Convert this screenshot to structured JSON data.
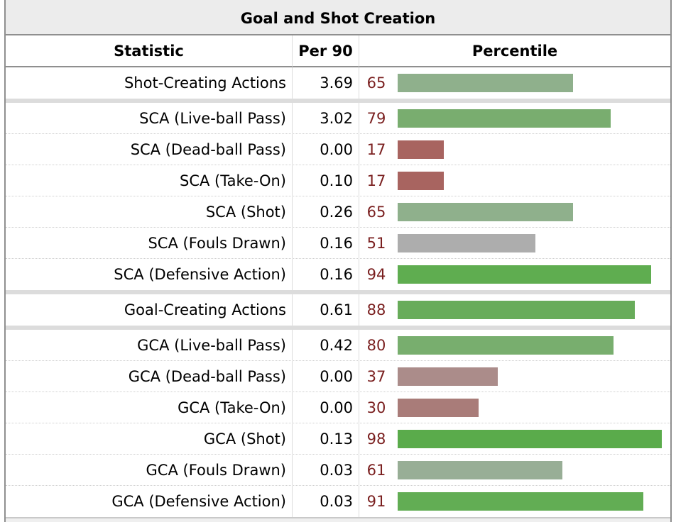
{
  "title": "Goal and Shot Creation",
  "headers": {
    "statistic": "Statistic",
    "per90": "Per 90",
    "percentile": "Percentile"
  },
  "chart_data": {
    "type": "bar",
    "title": "Goal and Shot Creation",
    "xlabel": "",
    "ylabel": "Percentile",
    "ylim": [
      0,
      100
    ],
    "rows": [
      {
        "stat": "Shot-Creating Actions",
        "per90": "3.69",
        "percentile": 65,
        "color": "#8fb08c",
        "group": 1
      },
      {
        "stat": "SCA (Live-ball Pass)",
        "per90": "3.02",
        "percentile": 79,
        "color": "#79ad6f",
        "group": 2
      },
      {
        "stat": "SCA (Dead-ball Pass)",
        "per90": "0.00",
        "percentile": 17,
        "color": "#a86460",
        "group": 2
      },
      {
        "stat": "SCA (Take-On)",
        "per90": "0.10",
        "percentile": 17,
        "color": "#a86460",
        "group": 2
      },
      {
        "stat": "SCA (Shot)",
        "per90": "0.26",
        "percentile": 65,
        "color": "#8fb08c",
        "group": 2
      },
      {
        "stat": "SCA (Fouls Drawn)",
        "per90": "0.16",
        "percentile": 51,
        "color": "#adadad",
        "group": 2
      },
      {
        "stat": "SCA (Defensive Action)",
        "per90": "0.16",
        "percentile": 94,
        "color": "#5fad50",
        "group": 2
      },
      {
        "stat": "Goal-Creating Actions",
        "per90": "0.61",
        "percentile": 88,
        "color": "#68ac5a",
        "group": 3
      },
      {
        "stat": "GCA (Live-ball Pass)",
        "per90": "0.42",
        "percentile": 80,
        "color": "#78ae6e",
        "group": 4
      },
      {
        "stat": "GCA (Dead-ball Pass)",
        "per90": "0.00",
        "percentile": 37,
        "color": "#ab8c8a",
        "group": 4
      },
      {
        "stat": "GCA (Take-On)",
        "per90": "0.00",
        "percentile": 30,
        "color": "#a97c79",
        "group": 4
      },
      {
        "stat": "GCA (Shot)",
        "per90": "0.13",
        "percentile": 98,
        "color": "#5aab4b",
        "group": 4
      },
      {
        "stat": "GCA (Fouls Drawn)",
        "per90": "0.03",
        "percentile": 61,
        "color": "#98ae96",
        "group": 4
      },
      {
        "stat": "GCA (Defensive Action)",
        "per90": "0.03",
        "percentile": 91,
        "color": "#62ad54",
        "group": 4
      }
    ]
  }
}
